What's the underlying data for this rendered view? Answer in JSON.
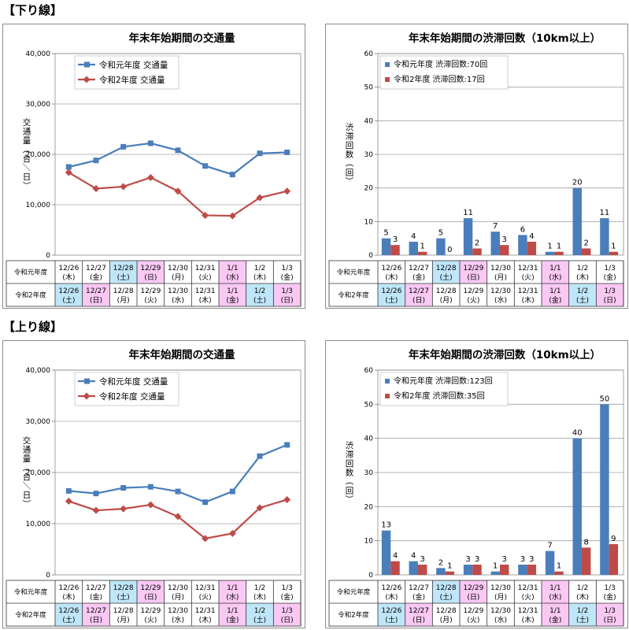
{
  "sections": {
    "down": "【下り線】",
    "up": "【上り線】"
  },
  "row_labels": {
    "r1": "令和元年度",
    "r2": "令和2年度"
  },
  "colors": {
    "r1": "#4a7ebb",
    "r2": "#be4b48",
    "sat": "#bfe6f8",
    "sun": "#f9c8f3",
    "grid": "#a0a0a0"
  },
  "chart_data": [
    {
      "id": "down-traffic",
      "type": "line",
      "title": "年末年始期間の交通量",
      "ylabel": "交通量（台／日）",
      "ylim": [
        0,
        40000
      ],
      "yticks": [
        "0",
        "10,000",
        "20,000",
        "30,000",
        "40,000"
      ],
      "legend": {
        "placement": "top-left"
      },
      "series": [
        {
          "name": "令和元年度 交通量",
          "values": [
            17500,
            18800,
            21500,
            22200,
            20800,
            17700,
            16000,
            20200,
            20400
          ]
        },
        {
          "name": "令和2年度 交通量",
          "values": [
            16400,
            13200,
            13600,
            15400,
            12700,
            7900,
            7800,
            11400,
            12700
          ]
        }
      ],
      "table": {
        "r1": [
          [
            "12/26",
            "(木)"
          ],
          [
            "12/27",
            "(金)"
          ],
          [
            "12/28",
            "(土)"
          ],
          [
            "12/29",
            "(日)"
          ],
          [
            "12/30",
            "(月)"
          ],
          [
            "12/31",
            "(火)"
          ],
          [
            "1/1",
            "(水)"
          ],
          [
            "1/2",
            "(木)"
          ],
          [
            "1/3",
            "(金)"
          ]
        ],
        "r1_hl": [
          "",
          "",
          "sat",
          "sun",
          "",
          "",
          "sun",
          "",
          ""
        ],
        "r2": [
          [
            "12/26",
            "(土)"
          ],
          [
            "12/27",
            "(日)"
          ],
          [
            "12/28",
            "(月)"
          ],
          [
            "12/29",
            "(火)"
          ],
          [
            "12/30",
            "(水)"
          ],
          [
            "12/31",
            "(木)"
          ],
          [
            "1/1",
            "(金)"
          ],
          [
            "1/2",
            "(土)"
          ],
          [
            "1/3",
            "(日)"
          ]
        ],
        "r2_hl": [
          "sat",
          "sun",
          "",
          "",
          "",
          "",
          "sun",
          "sat",
          "sun"
        ]
      }
    },
    {
      "id": "down-congestion",
      "type": "bar",
      "title": "年末年始期間の渋滞回数（10km以上）",
      "ylabel": "渋滞回数（回）",
      "ylim": [
        0,
        60
      ],
      "yticks": [
        "0",
        "10",
        "20",
        "30",
        "40",
        "50",
        "60"
      ],
      "legend": {
        "placement": "top-left"
      },
      "series": [
        {
          "name": "令和元年度 渋滞回数:70回",
          "values": [
            5,
            4,
            5,
            11,
            7,
            6,
            1,
            20,
            11
          ]
        },
        {
          "name": "令和2年度 渋滞回数:17回",
          "values": [
            3,
            1,
            0,
            2,
            3,
            4,
            1,
            2,
            1
          ]
        }
      ],
      "table": {
        "r1": [
          [
            "12/26",
            "(木)"
          ],
          [
            "12/27",
            "(金)"
          ],
          [
            "12/28",
            "(土)"
          ],
          [
            "12/29",
            "(日)"
          ],
          [
            "12/30",
            "(月)"
          ],
          [
            "12/31",
            "(火)"
          ],
          [
            "1/1",
            "(水)"
          ],
          [
            "1/2",
            "(木)"
          ],
          [
            "1/3",
            "(金)"
          ]
        ],
        "r1_hl": [
          "",
          "",
          "sat",
          "sun",
          "",
          "",
          "sun",
          "",
          ""
        ],
        "r2": [
          [
            "12/26",
            "(土)"
          ],
          [
            "12/27",
            "(日)"
          ],
          [
            "12/28",
            "(月)"
          ],
          [
            "12/29",
            "(火)"
          ],
          [
            "12/30",
            "(水)"
          ],
          [
            "12/31",
            "(木)"
          ],
          [
            "1/1",
            "(金)"
          ],
          [
            "1/2",
            "(土)"
          ],
          [
            "1/3",
            "(日)"
          ]
        ],
        "r2_hl": [
          "sat",
          "sun",
          "",
          "",
          "",
          "",
          "sun",
          "sat",
          "sun"
        ]
      }
    },
    {
      "id": "up-traffic",
      "type": "line",
      "title": "年末年始期間の交通量",
      "ylabel": "交通量（台／日）",
      "ylim": [
        0,
        40000
      ],
      "yticks": [
        "0",
        "10,000",
        "20,000",
        "30,000",
        "40,000"
      ],
      "legend": {
        "placement": "top-left"
      },
      "series": [
        {
          "name": "令和元年度 交通量",
          "values": [
            16400,
            15900,
            17000,
            17200,
            16300,
            14200,
            16300,
            23200,
            25400
          ]
        },
        {
          "name": "令和2年度 交通量",
          "values": [
            14400,
            12600,
            12900,
            13700,
            11400,
            7100,
            8100,
            13100,
            14700
          ]
        }
      ],
      "table": {
        "r1": [
          [
            "12/26",
            "(木)"
          ],
          [
            "12/27",
            "(金)"
          ],
          [
            "12/28",
            "(土)"
          ],
          [
            "12/29",
            "(日)"
          ],
          [
            "12/30",
            "(月)"
          ],
          [
            "12/31",
            "(火)"
          ],
          [
            "1/1",
            "(水)"
          ],
          [
            "1/2",
            "(木)"
          ],
          [
            "1/3",
            "(金)"
          ]
        ],
        "r1_hl": [
          "",
          "",
          "sat",
          "sun",
          "",
          "",
          "sun",
          "",
          ""
        ],
        "r2": [
          [
            "12/26",
            "(土)"
          ],
          [
            "12/27",
            "(日)"
          ],
          [
            "12/28",
            "(月)"
          ],
          [
            "12/29",
            "(火)"
          ],
          [
            "12/30",
            "(水)"
          ],
          [
            "12/31",
            "(木)"
          ],
          [
            "1/1",
            "(金)"
          ],
          [
            "1/2",
            "(土)"
          ],
          [
            "1/3",
            "(日)"
          ]
        ],
        "r2_hl": [
          "sat",
          "sun",
          "",
          "",
          "",
          "",
          "sun",
          "sat",
          "sun"
        ]
      }
    },
    {
      "id": "up-congestion",
      "type": "bar",
      "title": "年末年始期間の渋滞回数（10km以上）",
      "ylabel": "渋滞回数（回）",
      "ylim": [
        0,
        60
      ],
      "yticks": [
        "0",
        "10",
        "20",
        "30",
        "40",
        "50",
        "60"
      ],
      "legend": {
        "placement": "top-left"
      },
      "series": [
        {
          "name": "令和元年度 渋滞回数:123回",
          "values": [
            13,
            4,
            2,
            3,
            1,
            3,
            7,
            40,
            50
          ]
        },
        {
          "name": "令和2年度 渋滞回数:35回",
          "values": [
            4,
            3,
            1,
            3,
            3,
            3,
            1,
            8,
            9
          ]
        }
      ],
      "table": {
        "r1": [
          [
            "12/26",
            "(木)"
          ],
          [
            "12/27",
            "(金)"
          ],
          [
            "12/28",
            "(土)"
          ],
          [
            "12/29",
            "(日)"
          ],
          [
            "12/30",
            "(月)"
          ],
          [
            "12/31",
            "(火)"
          ],
          [
            "1/1",
            "(水)"
          ],
          [
            "1/2",
            "(木)"
          ],
          [
            "1/3",
            "(金)"
          ]
        ],
        "r1_hl": [
          "",
          "",
          "sat",
          "sun",
          "",
          "",
          "sun",
          "",
          ""
        ],
        "r2": [
          [
            "12/26",
            "(土)"
          ],
          [
            "12/27",
            "(日)"
          ],
          [
            "12/28",
            "(月)"
          ],
          [
            "12/29",
            "(火)"
          ],
          [
            "12/30",
            "(水)"
          ],
          [
            "12/31",
            "(木)"
          ],
          [
            "1/1",
            "(金)"
          ],
          [
            "1/2",
            "(土)"
          ],
          [
            "1/3",
            "(日)"
          ]
        ],
        "r2_hl": [
          "sat",
          "sun",
          "",
          "",
          "",
          "",
          "sun",
          "sat",
          "sun"
        ]
      }
    }
  ]
}
